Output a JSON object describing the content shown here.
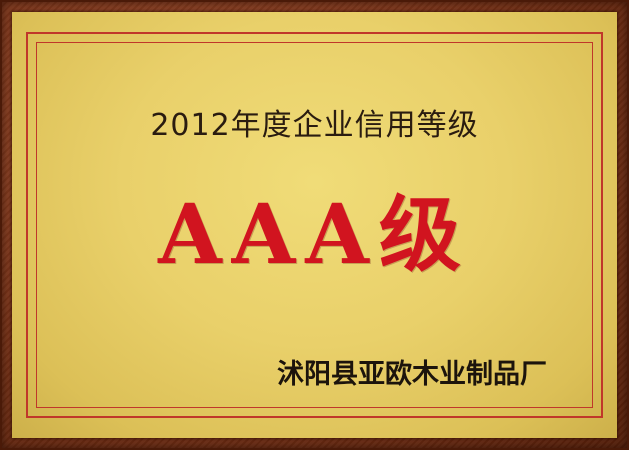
{
  "certificate": {
    "title": "2012年度企业信用等级",
    "grade": "AAA级",
    "company": "沭阳县亚欧木业制品厂"
  },
  "colors": {
    "frame": "#7a3418",
    "gold_background": "#e9d06a",
    "border_lines": "#c0372a",
    "grade_text": "#d1141f",
    "body_text": "#2a1c10"
  }
}
